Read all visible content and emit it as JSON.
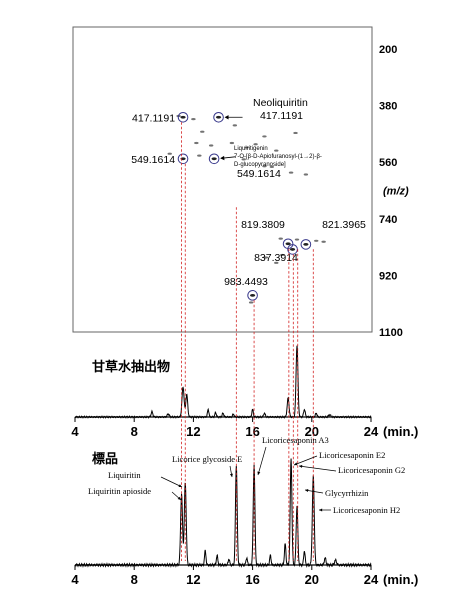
{
  "chart_data": [
    {
      "type": "scatter",
      "panel": "2D LC-MS map",
      "xlim": [
        4,
        24
      ],
      "ylabel": "(m/z)",
      "yticks": [
        200,
        380,
        560,
        740,
        920,
        1100
      ],
      "ylim": [
        200,
        1100
      ],
      "points": [
        {
          "x": 11.3,
          "y": 417.1191,
          "label": "417.1191",
          "circled": true
        },
        {
          "x": 13.7,
          "y": 417.1191,
          "label": "Neoliquiritin\n417.1191",
          "circled": true
        },
        {
          "x": 11.3,
          "y": 549.1614,
          "label": "549.1614",
          "circled": true
        },
        {
          "x": 13.4,
          "y": 549.1614,
          "label": "Liquiritigenin\n7-O-[β-D-Apiofuranosyl-(1→2)-β-\nD-glucopyranoside]\n549.1614",
          "circled": true
        },
        {
          "x": 18.4,
          "y": 819.3809,
          "label": "819.3809",
          "circled": true
        },
        {
          "x": 19.6,
          "y": 821.3965,
          "label": "821.3965",
          "circled": true
        },
        {
          "x": 18.7,
          "y": 837.3914,
          "label": "837.3914",
          "circled": true
        },
        {
          "x": 16.0,
          "y": 983.4493,
          "label": "983.4493",
          "circled": true
        }
      ],
      "spots": [
        [
          11.0,
          413
        ],
        [
          12.0,
          423
        ],
        [
          14.8,
          443
        ],
        [
          16.8,
          478
        ],
        [
          14.6,
          499
        ],
        [
          13.2,
          507
        ],
        [
          15.6,
          513
        ],
        [
          17.6,
          523
        ],
        [
          10.4,
          533
        ],
        [
          12.4,
          539
        ],
        [
          15.4,
          551
        ],
        [
          16.8,
          573
        ],
        [
          17.3,
          575
        ],
        [
          18.6,
          593
        ],
        [
          19.6,
          599
        ],
        [
          12.2,
          499
        ],
        [
          16.2,
          503
        ],
        [
          17.9,
          803
        ],
        [
          19.0,
          806
        ],
        [
          20.3,
          810
        ],
        [
          20.8,
          813
        ],
        [
          18.0,
          855
        ],
        [
          16.9,
          863
        ],
        [
          17.6,
          880
        ],
        [
          15.9,
          1006
        ],
        [
          12.6,
          463
        ],
        [
          18.9,
          467
        ]
      ]
    },
    {
      "type": "line",
      "panel": "sample chromatogram",
      "title": "甘草水抽出物",
      "xlabel": "(min.)",
      "xlim": [
        4,
        24
      ],
      "xticks": [
        4,
        8,
        12,
        16,
        20,
        24
      ],
      "peaks": [
        {
          "x": 9.2,
          "height": 0.07,
          "width": 0.08
        },
        {
          "x": 10.3,
          "height": 0.04,
          "width": 0.1
        },
        {
          "x": 11.3,
          "height": 0.4,
          "width": 0.1
        },
        {
          "x": 11.55,
          "height": 0.3,
          "width": 0.09
        },
        {
          "x": 13.0,
          "height": 0.1,
          "width": 0.07
        },
        {
          "x": 13.5,
          "height": 0.06,
          "width": 0.07
        },
        {
          "x": 14.0,
          "height": 0.05,
          "width": 0.08
        },
        {
          "x": 14.7,
          "height": 0.04,
          "width": 0.07
        },
        {
          "x": 16.0,
          "height": 0.1,
          "width": 0.07
        },
        {
          "x": 16.8,
          "height": 0.05,
          "width": 0.08
        },
        {
          "x": 18.4,
          "height": 0.25,
          "width": 0.09
        },
        {
          "x": 19.0,
          "height": 0.95,
          "width": 0.09
        },
        {
          "x": 19.5,
          "height": 0.1,
          "width": 0.08
        },
        {
          "x": 20.3,
          "height": 0.05,
          "width": 0.08
        },
        {
          "x": 21.2,
          "height": 0.03,
          "width": 0.1
        }
      ]
    },
    {
      "type": "line",
      "panel": "standard chromatogram",
      "title": "標品",
      "xlabel": "(min.)",
      "xlim": [
        4,
        24
      ],
      "xticks": [
        4,
        8,
        12,
        16,
        20,
        24
      ],
      "peaks": [
        {
          "x": 11.2,
          "height": 0.6,
          "width": 0.09
        },
        {
          "x": 11.45,
          "height": 0.7,
          "width": 0.09
        },
        {
          "x": 12.8,
          "height": 0.12,
          "width": 0.07
        },
        {
          "x": 13.6,
          "height": 0.08,
          "width": 0.07
        },
        {
          "x": 14.4,
          "height": 0.05,
          "width": 0.07
        },
        {
          "x": 14.9,
          "height": 0.85,
          "width": 0.08
        },
        {
          "x": 15.6,
          "height": 0.06,
          "width": 0.07
        },
        {
          "x": 16.1,
          "height": 0.85,
          "width": 0.08
        },
        {
          "x": 17.2,
          "height": 0.08,
          "width": 0.07
        },
        {
          "x": 18.2,
          "height": 0.18,
          "width": 0.07
        },
        {
          "x": 18.6,
          "height": 0.9,
          "width": 0.08
        },
        {
          "x": 19.0,
          "height": 0.5,
          "width": 0.08
        },
        {
          "x": 19.5,
          "height": 0.12,
          "width": 0.07
        },
        {
          "x": 20.1,
          "height": 0.75,
          "width": 0.09
        },
        {
          "x": 20.9,
          "height": 0.06,
          "width": 0.08
        },
        {
          "x": 21.6,
          "height": 0.04,
          "width": 0.1
        }
      ],
      "annotations": [
        {
          "text": "Liquiritin apioside",
          "peak_x": 11.2
        },
        {
          "text": "Liquiritin",
          "peak_x": 11.45
        },
        {
          "text": "Licorice glycoside E",
          "peak_x": 14.9
        },
        {
          "text": "Licoricesaponin A3",
          "peak_x": 16.1
        },
        {
          "text": "Licoricesaponin E2",
          "peak_x": 18.6
        },
        {
          "text": "Licoricesaponin G2",
          "peak_x": 18.75
        },
        {
          "text": "Glycyrrhizin",
          "peak_x": 19.0
        },
        {
          "text": "Licoricesaponin H2",
          "peak_x": 20.1
        }
      ]
    }
  ],
  "colors": {
    "guide": "#d22020",
    "circle": "#3a3a8c",
    "spot": "#444444"
  }
}
